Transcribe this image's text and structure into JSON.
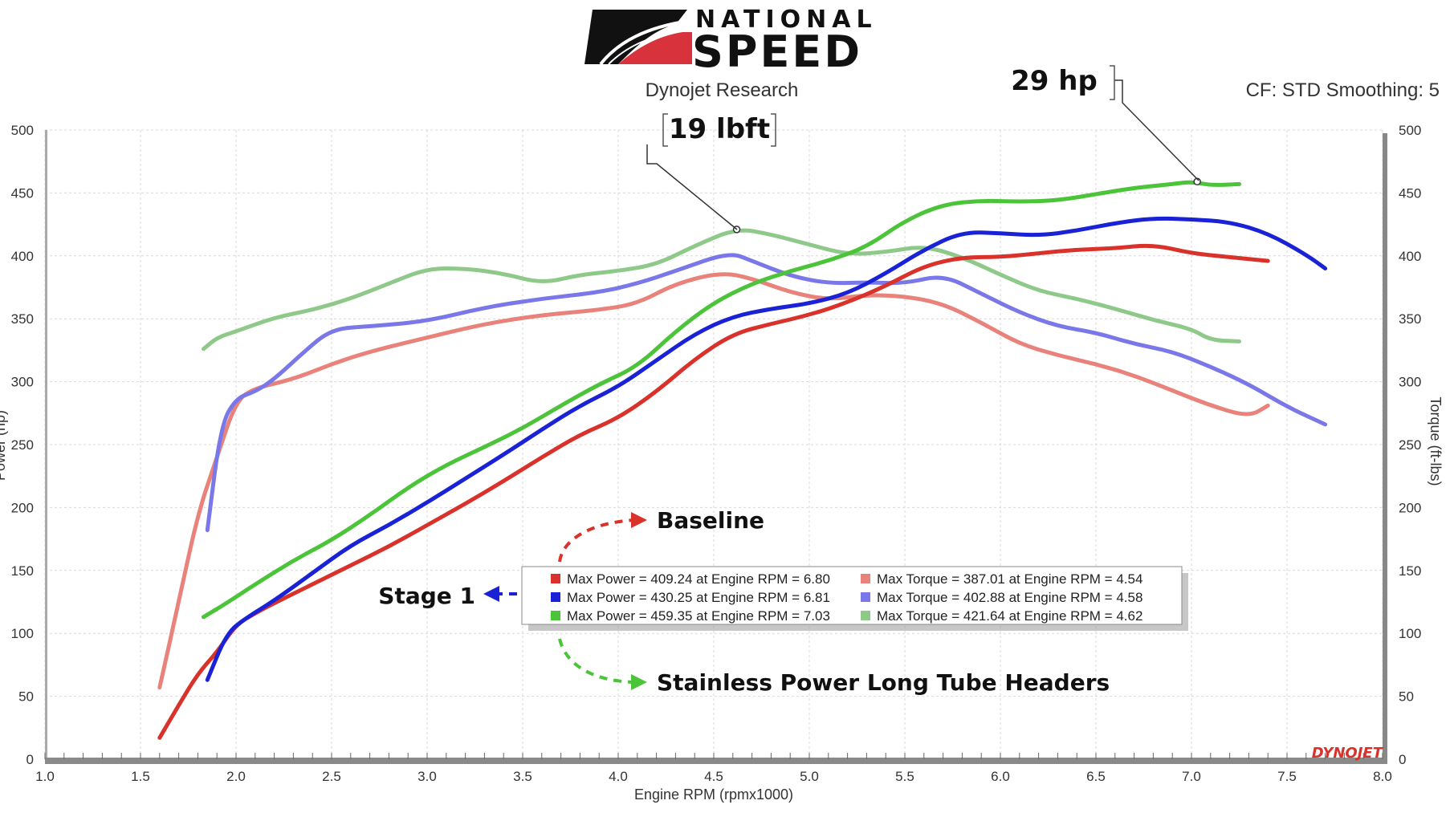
{
  "header": {
    "brand_top": "NATIONAL",
    "brand_bottom": "SPEED",
    "dyno_label": "Dynojet Research",
    "settings_label": "CF: STD Smoothing: 5",
    "watermark": "DYNOJET"
  },
  "annotations": {
    "torque_gain": "19 lbft",
    "power_gain": "29 hp",
    "baseline_label": "Baseline",
    "stage1_label": "Stage 1",
    "headers_label": "Stainless Power Long Tube Headers"
  },
  "colors": {
    "baseline_power": "#d9322b",
    "baseline_torque": "#e8827a",
    "stage1_power": "#1a22d6",
    "stage1_torque": "#7a78e8",
    "headers_power": "#4cc43a",
    "headers_torque": "#8fc98a",
    "grid": "#d9d9d9",
    "axis_bar": "#8a8a8a"
  },
  "chart_data": {
    "type": "line",
    "xlabel": "Engine RPM (rpmx1000)",
    "ylabel": "Power (hp)",
    "y2label": "Torque (ft-lbs)",
    "xlim": [
      1.0,
      8.0
    ],
    "ylim": [
      0,
      500
    ],
    "y2lim": [
      0,
      500
    ],
    "x_ticks": [
      "1.0",
      "1.5",
      "2.0",
      "2.5",
      "3.0",
      "3.5",
      "4.0",
      "4.5",
      "5.0",
      "5.5",
      "6.0",
      "6.5",
      "7.0",
      "7.5",
      "8.0"
    ],
    "y_ticks": [
      "0",
      "50",
      "100",
      "150",
      "200",
      "250",
      "300",
      "350",
      "400",
      "450",
      "500"
    ],
    "grid": true,
    "legend_position": "bottom-center",
    "legend": [
      "Max Power = 409.24 at Engine RPM = 6.80",
      "Max Power = 430.25 at Engine RPM = 6.81",
      "Max Power = 459.35 at Engine RPM = 7.03",
      "Max Torque = 387.01 at Engine RPM = 4.54",
      "Max Torque = 402.88 at Engine RPM = 4.58",
      "Max Torque = 421.64 at Engine RPM = 4.62"
    ],
    "series": [
      {
        "color_key": "baseline_power",
        "x": [
          1.6,
          1.7,
          1.8,
          1.9,
          2.0,
          2.1,
          2.2,
          2.4,
          2.6,
          2.8,
          3.0,
          3.2,
          3.4,
          3.6,
          3.8,
          4.0,
          4.2,
          4.4,
          4.6,
          4.8,
          5.0,
          5.2,
          5.4,
          5.6,
          5.8,
          6.0,
          6.2,
          6.4,
          6.6,
          6.8,
          7.0,
          7.2,
          7.4
        ],
        "y": [
          17,
          43,
          68,
          85,
          107,
          116,
          124,
          139,
          154,
          169,
          186,
          203,
          221,
          240,
          258,
          271,
          292,
          318,
          338,
          346,
          353,
          363,
          376,
          392,
          399,
          399,
          402,
          405,
          406,
          409,
          402,
          399,
          396
        ]
      },
      {
        "color_key": "stage1_power",
        "x": [
          1.85,
          1.95,
          2.05,
          2.2,
          2.4,
          2.6,
          2.8,
          3.0,
          3.2,
          3.4,
          3.6,
          3.8,
          4.0,
          4.2,
          4.4,
          4.6,
          4.8,
          5.0,
          5.2,
          5.4,
          5.6,
          5.8,
          6.0,
          6.2,
          6.4,
          6.6,
          6.8,
          7.0,
          7.2,
          7.4,
          7.6,
          7.7
        ],
        "y": [
          63,
          100,
          112,
          126,
          148,
          170,
          186,
          204,
          223,
          242,
          262,
          281,
          296,
          317,
          338,
          352,
          358,
          362,
          370,
          386,
          405,
          419,
          418,
          416,
          420,
          426,
          430,
          429,
          427,
          418,
          401,
          390
        ]
      },
      {
        "color_key": "headers_power",
        "x": [
          1.83,
          1.95,
          2.1,
          2.3,
          2.5,
          2.7,
          2.9,
          3.1,
          3.3,
          3.5,
          3.7,
          3.9,
          4.1,
          4.3,
          4.5,
          4.7,
          4.9,
          5.1,
          5.3,
          5.5,
          5.7,
          5.9,
          6.1,
          6.3,
          6.5,
          6.7,
          6.9,
          7.0,
          7.1,
          7.25
        ],
        "y": [
          113,
          124,
          139,
          158,
          174,
          194,
          216,
          234,
          248,
          263,
          281,
          298,
          312,
          340,
          363,
          378,
          388,
          396,
          407,
          428,
          441,
          444,
          443,
          444,
          449,
          454,
          457,
          459,
          456,
          457
        ]
      },
      {
        "color_key": "baseline_torque",
        "x": [
          1.6,
          1.7,
          1.8,
          1.9,
          2.0,
          2.1,
          2.3,
          2.5,
          2.7,
          3.0,
          3.3,
          3.6,
          3.9,
          4.1,
          4.3,
          4.54,
          4.7,
          4.9,
          5.1,
          5.3,
          5.5,
          5.7,
          5.9,
          6.1,
          6.3,
          6.5,
          6.7,
          6.9,
          7.1,
          7.3,
          7.4
        ],
        "y": [
          57,
          125,
          195,
          240,
          285,
          295,
          302,
          314,
          324,
          335,
          346,
          353,
          357,
          362,
          378,
          387,
          382,
          371,
          365,
          369,
          368,
          362,
          347,
          330,
          321,
          314,
          305,
          293,
          281,
          272,
          281
        ]
      },
      {
        "color_key": "stage1_torque",
        "x": [
          1.85,
          1.92,
          2.0,
          2.1,
          2.2,
          2.35,
          2.5,
          2.7,
          3.0,
          3.3,
          3.6,
          3.9,
          4.1,
          4.3,
          4.58,
          4.7,
          4.9,
          5.1,
          5.3,
          5.5,
          5.7,
          5.9,
          6.1,
          6.3,
          6.5,
          6.7,
          6.9,
          7.1,
          7.3,
          7.5,
          7.7
        ],
        "y": [
          182,
          265,
          287,
          292,
          302,
          323,
          342,
          344,
          348,
          359,
          366,
          371,
          378,
          388,
          403,
          396,
          384,
          378,
          379,
          378,
          385,
          370,
          355,
          344,
          339,
          330,
          324,
          312,
          298,
          280,
          266
        ]
      },
      {
        "color_key": "headers_torque",
        "x": [
          1.83,
          1.9,
          2.0,
          2.2,
          2.4,
          2.6,
          2.8,
          3.0,
          3.2,
          3.4,
          3.6,
          3.8,
          4.0,
          4.2,
          4.4,
          4.62,
          4.8,
          5.0,
          5.2,
          5.4,
          5.6,
          5.8,
          6.0,
          6.2,
          6.4,
          6.6,
          6.8,
          7.0,
          7.1,
          7.25
        ],
        "y": [
          326,
          335,
          340,
          351,
          357,
          366,
          378,
          390,
          390,
          386,
          378,
          385,
          388,
          393,
          408,
          422,
          417,
          409,
          401,
          403,
          408,
          399,
          385,
          372,
          366,
          358,
          349,
          342,
          333,
          332
        ]
      }
    ],
    "markers": [
      {
        "x": 4.62,
        "y": 421,
        "series": "headers_torque"
      },
      {
        "x": 7.03,
        "y": 459,
        "series": "headers_power"
      }
    ]
  }
}
